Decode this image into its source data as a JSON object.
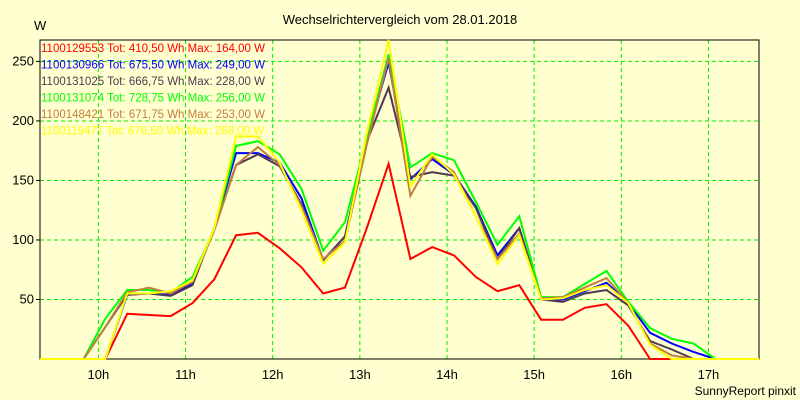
{
  "chart_data": {
    "type": "line",
    "title": "Wechselrichtervergleich vom 28.01.2018",
    "ylabel": "W",
    "xlabel": "",
    "footer": "SunnyReport pinxit",
    "xlim": [
      9.33,
      17.58
    ],
    "ylim": [
      0,
      268
    ],
    "grid": true,
    "legend_position": "top-left",
    "y_ticks": [
      50,
      100,
      150,
      200,
      250
    ],
    "x_ticks": [
      {
        "value": 10,
        "label": "10h"
      },
      {
        "value": 11,
        "label": "11h"
      },
      {
        "value": 12,
        "label": "12h"
      },
      {
        "value": 13,
        "label": "13h"
      },
      {
        "value": 14,
        "label": "14h"
      },
      {
        "value": 15,
        "label": "15h"
      },
      {
        "value": 16,
        "label": "16h"
      },
      {
        "value": 17,
        "label": "17h"
      }
    ],
    "x": [
      9.33,
      9.58,
      9.83,
      10.08,
      10.33,
      10.58,
      10.83,
      11.08,
      11.33,
      11.58,
      11.83,
      12.08,
      12.33,
      12.58,
      12.83,
      13.08,
      13.33,
      13.58,
      13.83,
      14.08,
      14.33,
      14.58,
      14.83,
      15.08,
      15.33,
      15.58,
      15.83,
      16.08,
      16.33,
      16.58,
      16.83,
      17.08,
      17.33,
      17.58
    ],
    "series": [
      {
        "name": "1100129553",
        "legend": "1100129553 Tot: 410,50 Wh Max: 164,00 W",
        "color": "#ff0000",
        "values": [
          0,
          0,
          0,
          0,
          38,
          37,
          36,
          47,
          67,
          104,
          106,
          93,
          77,
          55,
          60,
          110,
          164,
          84,
          94,
          87,
          69,
          57,
          62,
          33,
          33,
          43,
          46,
          28,
          0,
          0,
          0,
          0,
          0,
          0
        ]
      },
      {
        "name": "1100130966",
        "legend": "1100130966 Tot: 675,50 Wh Max: 249,00 W",
        "color": "#0000ff",
        "values": [
          0,
          0,
          0,
          0,
          54,
          55,
          54,
          63,
          110,
          173,
          173,
          165,
          135,
          83,
          103,
          185,
          249,
          151,
          168,
          155,
          128,
          87,
          110,
          50,
          50,
          57,
          64,
          47,
          22,
          13,
          6,
          0,
          0,
          0
        ]
      },
      {
        "name": "1100131025",
        "legend": "1100131025 Tot: 666,75 Wh Max: 228,00 W",
        "color": "#503850",
        "values": [
          0,
          0,
          0,
          27,
          54,
          55,
          53,
          62,
          110,
          163,
          172,
          162,
          130,
          83,
          103,
          183,
          228,
          153,
          157,
          154,
          127,
          84,
          110,
          50,
          48,
          55,
          58,
          45,
          15,
          8,
          0,
          0,
          0,
          0
        ]
      },
      {
        "name": "1100131074",
        "legend": "1100131074 Tot: 728,75 Wh Max: 256,00 W",
        "color": "#00ff00",
        "values": [
          0,
          0,
          0,
          34,
          58,
          58,
          56,
          69,
          109,
          179,
          183,
          172,
          143,
          91,
          115,
          185,
          256,
          161,
          173,
          167,
          132,
          96,
          120,
          52,
          52,
          63,
          74,
          48,
          26,
          17,
          13,
          0,
          0,
          0
        ]
      },
      {
        "name": "1100148421",
        "legend": "1100148421 Tot: 671,75 Wh Max: 253,00 W",
        "color": "#c08040",
        "values": [
          0,
          0,
          0,
          27,
          56,
          60,
          55,
          65,
          108,
          163,
          178,
          163,
          128,
          84,
          99,
          180,
          253,
          137,
          170,
          157,
          120,
          84,
          105,
          51,
          52,
          60,
          68,
          47,
          13,
          3,
          0,
          0,
          0,
          0
        ]
      },
      {
        "name": "1100119477",
        "legend": "1100119477 Tot: 676,50 Wh Max: 268,00 W",
        "color": "#ffff00",
        "values": [
          0,
          0,
          0,
          0,
          55,
          55,
          57,
          66,
          110,
          187,
          187,
          165,
          125,
          80,
          98,
          190,
          268,
          145,
          172,
          155,
          120,
          80,
          104,
          50,
          51,
          58,
          62,
          47,
          12,
          0,
          0,
          0,
          0,
          0
        ]
      }
    ]
  }
}
